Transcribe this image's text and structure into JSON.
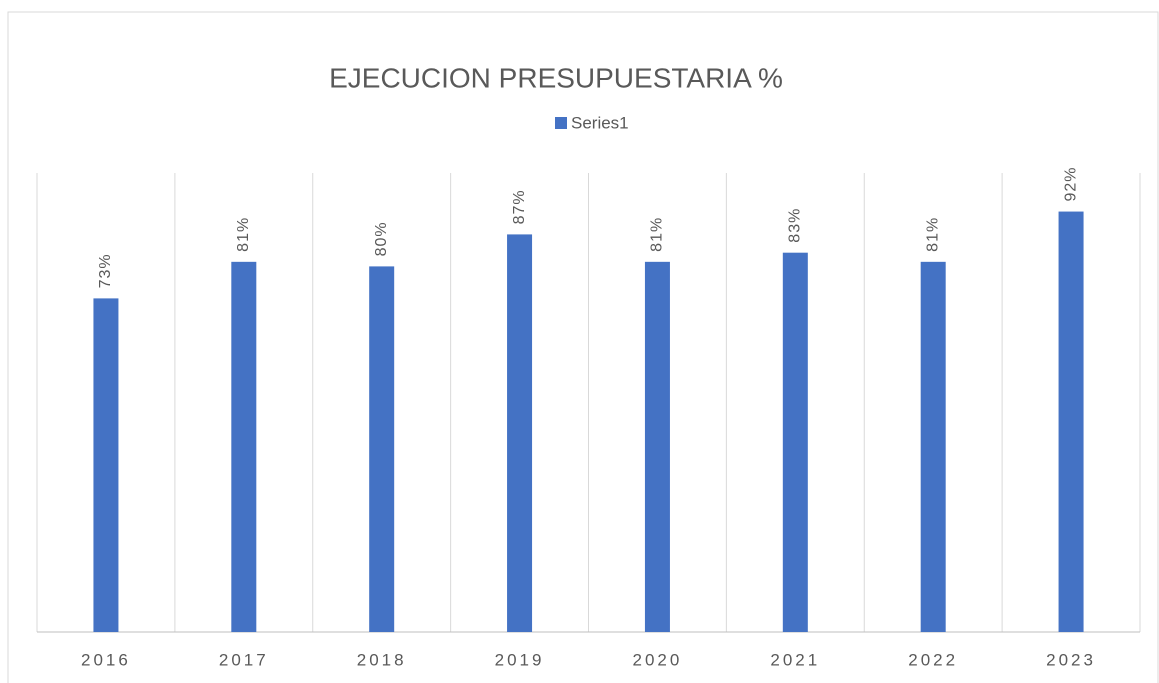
{
  "chart_data": {
    "type": "bar",
    "title": "EJECUCION PRESUPUESTARIA %",
    "categories": [
      "2016",
      "2017",
      "2018",
      "2019",
      "2020",
      "2021",
      "2022",
      "2023"
    ],
    "series": [
      {
        "name": "Series1",
        "color": "#4472c4",
        "values": [
          73,
          81,
          80,
          87,
          81,
          83,
          81,
          92
        ],
        "value_labels": [
          "73%",
          "81%",
          "80%",
          "87%",
          "81%",
          "83%",
          "81%",
          "92%"
        ]
      }
    ],
    "ylim": [
      0,
      100
    ],
    "legend": "top"
  }
}
